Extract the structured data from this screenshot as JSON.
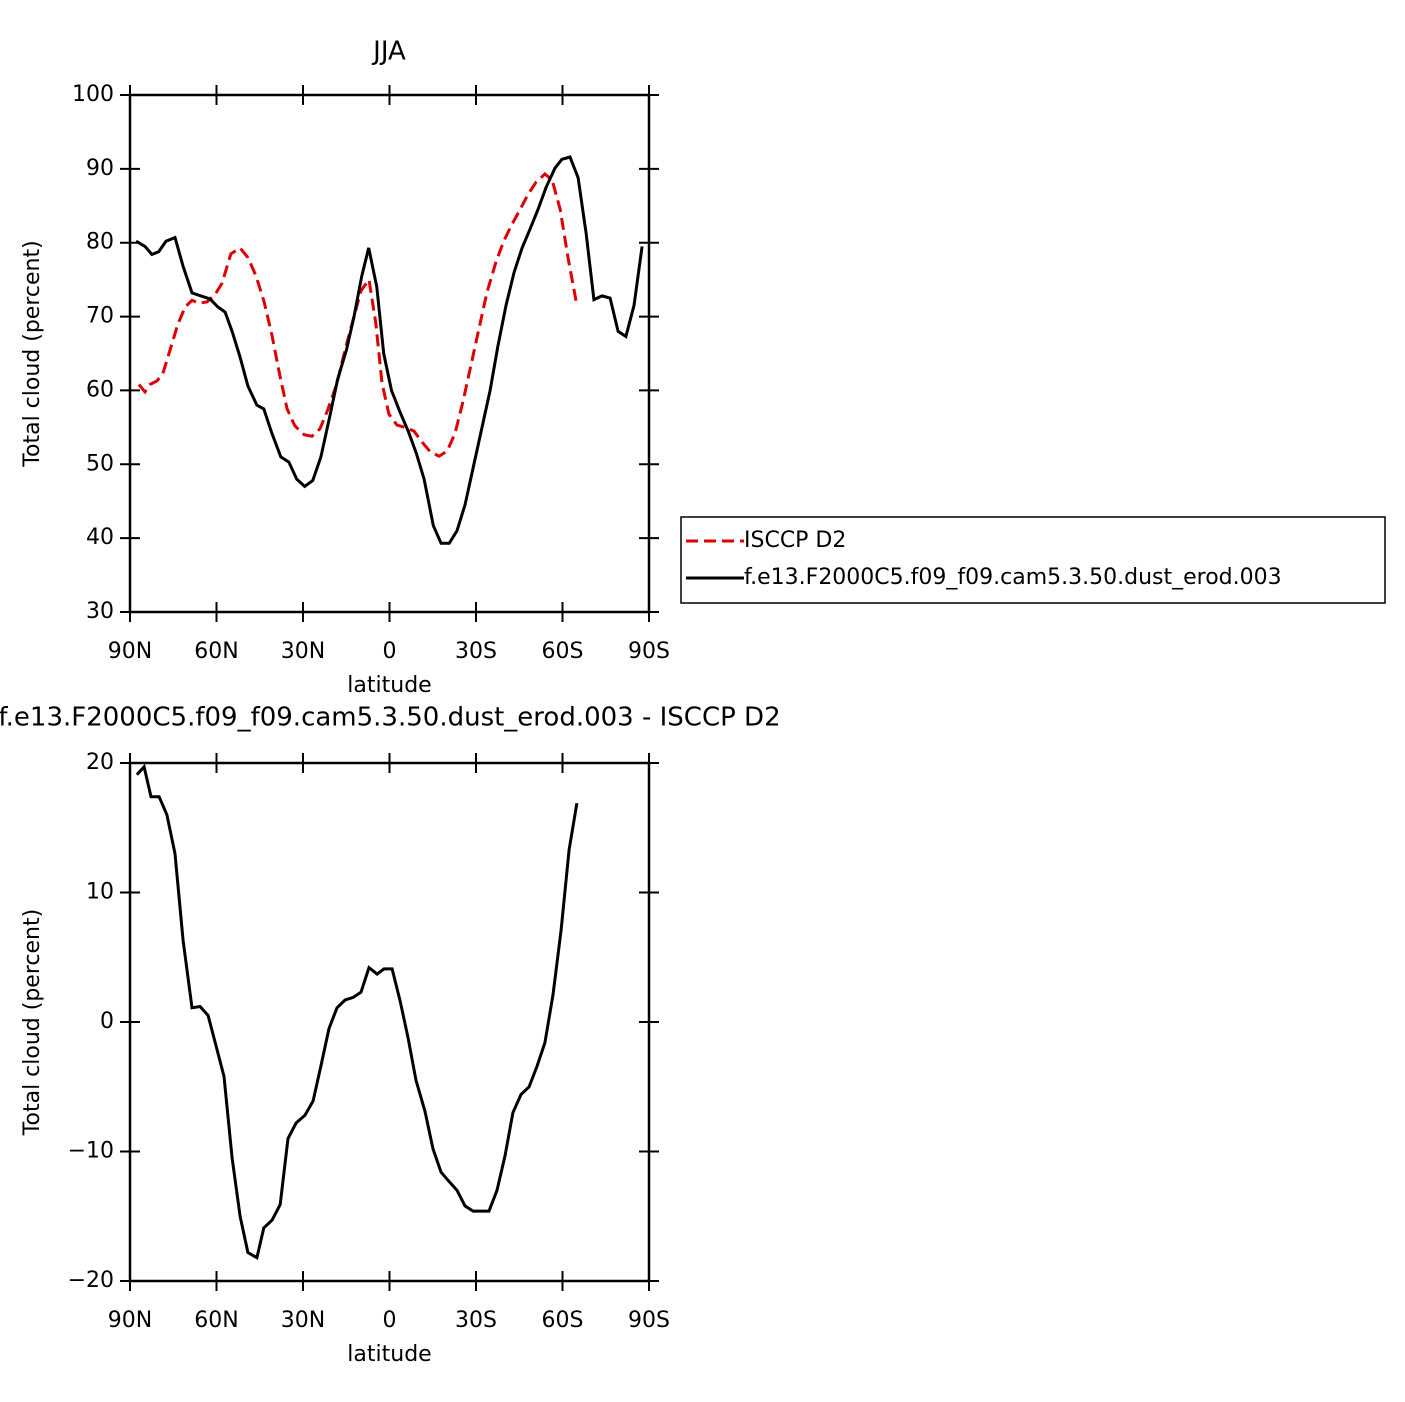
{
  "chart_data": [
    {
      "type": "line",
      "title": "JJA",
      "xlabel": "latitude",
      "ylabel": "Total cloud (percent)",
      "xlim": [
        90,
        -90
      ],
      "xticks": [
        {
          "value": 90,
          "label": "90N"
        },
        {
          "value": 60,
          "label": "60N"
        },
        {
          "value": 30,
          "label": "30N"
        },
        0,
        {
          "value": -30,
          "label": "30S"
        },
        {
          "value": -60,
          "label": "60S"
        },
        {
          "value": -90,
          "label": "90S"
        }
      ],
      "ylim": [
        30,
        100
      ],
      "yticks": [
        30,
        40,
        50,
        60,
        70,
        80,
        90,
        100
      ],
      "legend": "right",
      "series": [
        {
          "name": "ISCCP D2",
          "color": "#e00000",
          "linestyle": "dashed",
          "x": [
            86.9,
            84.8,
            83.1,
            80.6,
            78.6,
            76.1,
            73.4,
            70.9,
            68.5,
            66.1,
            63.3,
            60.5,
            58.1,
            55.0,
            51.8,
            49.1,
            46.3,
            43.5,
            40.8,
            38.0,
            35.5,
            32.8,
            29.6,
            26.9,
            24.1,
            21.3,
            18.2,
            15.4,
            12.3,
            9.9,
            7.1,
            4.7,
            2.6,
            0.2,
            -2.6,
            -5.4,
            -8.5,
            -11.3,
            -14.1,
            -17.2,
            -20.0,
            -22.7,
            -25.5,
            -28.3,
            -31.1,
            -33.8,
            -37.0,
            -39.7,
            -42.5,
            -45.3,
            -48.0,
            -50.8,
            -53.9,
            -56.4,
            -59.2,
            -61.9,
            -65.0
          ],
          "values": [
            60.8,
            59.8,
            60.8,
            61.3,
            62.3,
            65.5,
            69,
            71.3,
            72.2,
            71.8,
            72,
            73,
            74.5,
            78.5,
            79.3,
            78,
            75.5,
            72,
            67.5,
            62,
            57.5,
            55.2,
            54,
            53.8,
            54.8,
            57.5,
            61,
            65.5,
            70,
            73.5,
            75,
            69,
            61,
            56.8,
            55.3,
            55,
            54.5,
            53,
            51.7,
            51.1,
            51.8,
            54.2,
            58.5,
            63.5,
            68.5,
            73.3,
            77.5,
            80.3,
            82.5,
            84.5,
            86.5,
            88.2,
            89.3,
            88.5,
            84.5,
            78,
            71.5
          ]
        },
        {
          "name": "f.e13.F2000C5.f09_f09.cam5.3.50.dust_erod.003",
          "color": "#000000",
          "linestyle": "solid",
          "x": [
            87.9,
            84.8,
            82.4,
            80.0,
            77.5,
            74.4,
            71.6,
            68.5,
            65.4,
            62.3,
            59.5,
            57.0,
            54.6,
            51.8,
            49.1,
            46.0,
            43.6,
            40.8,
            37.7,
            34.9,
            32.2,
            29.4,
            26.6,
            23.8,
            20.7,
            18.0,
            14.9,
            12.3,
            9.6,
            7.2,
            4.4,
            2.0,
            -0.7,
            -3.7,
            -6.5,
            -9.3,
            -12.0,
            -15.2,
            -17.9,
            -20.7,
            -23.4,
            -26.2,
            -29.0,
            -31.8,
            -34.9,
            -37.6,
            -40.4,
            -43.2,
            -46.0,
            -48.7,
            -51.5,
            -54.3,
            -57.4,
            -59.8,
            -62.6,
            -65.4,
            -68.2,
            -70.9,
            -73.7,
            -76.5,
            -79.3,
            -82.0,
            -84.8,
            -87.6
          ],
          "values": [
            80.2,
            79.5,
            78.4,
            78.8,
            80.2,
            80.7,
            76.8,
            73.2,
            72.8,
            72.4,
            71.3,
            70.6,
            68,
            64.5,
            60.6,
            58,
            57.5,
            54.2,
            51,
            50.3,
            48,
            47,
            47.8,
            51,
            56.5,
            61.5,
            65.5,
            70,
            75.5,
            79.3,
            74,
            65,
            60,
            57,
            54.5,
            51.5,
            48,
            41.7,
            39.3,
            39.3,
            41,
            44.5,
            49.5,
            54.5,
            60,
            66,
            71.5,
            76,
            79.3,
            81.8,
            84.5,
            87.5,
            90.1,
            91.3,
            91.6,
            88.8,
            81.3,
            72.3,
            72.8,
            72.5,
            68,
            67.3,
            71.5,
            79.5
          ]
        }
      ]
    },
    {
      "type": "line",
      "title": "f.e13.F2000C5.f09_f09.cam5.3.50.dust_erod.003 - ISCCP D2",
      "xlabel": "latitude",
      "ylabel": "Total cloud (percent)",
      "xlim": [
        90,
        -90
      ],
      "xticks": [
        {
          "value": 90,
          "label": "90N"
        },
        {
          "value": 60,
          "label": "60N"
        },
        {
          "value": 30,
          "label": "30N"
        },
        0,
        {
          "value": -30,
          "label": "30S"
        },
        {
          "value": -60,
          "label": "60S"
        },
        {
          "value": -90,
          "label": "90S"
        }
      ],
      "ylim": [
        -20,
        20
      ],
      "yticks": [
        {
          "value": -20,
          "label": "−20"
        },
        {
          "value": -10,
          "label": "−10"
        },
        0,
        10,
        20
      ],
      "series": [
        {
          "color": "#000000",
          "linestyle": "solid",
          "x": [
            87.6,
            85.1,
            82.7,
            79.9,
            77.2,
            74.4,
            71.6,
            68.5,
            65.7,
            62.9,
            60.2,
            57.4,
            54.6,
            51.8,
            49.1,
            46.0,
            43.6,
            40.7,
            37.9,
            35.2,
            32.4,
            29.3,
            26.5,
            23.8,
            21.0,
            18.2,
            15.4,
            12.6,
            9.9,
            7.1,
            4.3,
            1.9,
            -0.9,
            -3.7,
            -6.4,
            -9.2,
            -12.3,
            -15.1,
            -17.9,
            -20.6,
            -23.4,
            -26.2,
            -29.0,
            -31.7,
            -34.5,
            -37.3,
            -40.1,
            -42.8,
            -45.6,
            -48.4,
            -51.2,
            -53.9,
            -56.7,
            -59.5,
            -62.3,
            -65.0
          ],
          "values": [
            19.1,
            19.7,
            17.4,
            17.4,
            16,
            13,
            6.3,
            1.1,
            1.2,
            0.5,
            -1.8,
            -4.2,
            -10.5,
            -15,
            -17.8,
            -18.2,
            -15.9,
            -15.3,
            -14.1,
            -9,
            -7.8,
            -7.2,
            -6.1,
            -3.4,
            -0.5,
            1.1,
            1.7,
            1.9,
            2.3,
            4.2,
            3.7,
            4.1,
            4.1,
            1.6,
            -1.2,
            -4.5,
            -6.9,
            -9.8,
            -11.6,
            -12.3,
            -13,
            -14.2,
            -14.6,
            -14.6,
            -14.6,
            -13,
            -10.3,
            -7,
            -5.6,
            -5,
            -3.4,
            -1.6,
            2.1,
            7.1,
            13.3,
            16.9
          ]
        }
      ]
    }
  ]
}
